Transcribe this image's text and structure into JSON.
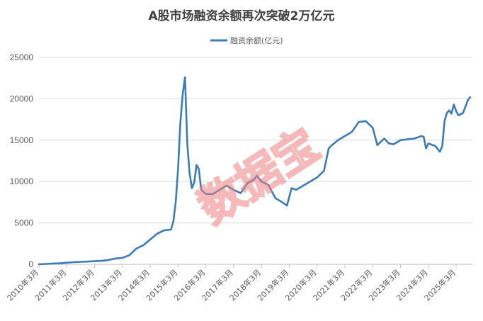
{
  "chart_data": {
    "type": "line",
    "title": "A股市场融资余额再次突破2万亿元",
    "xlabel": "",
    "ylabel": "",
    "ylim": [
      0,
      25000
    ],
    "yticks": [
      0,
      5000,
      10000,
      15000,
      20000,
      25000
    ],
    "xlim": [
      "2010-03",
      "2025-10"
    ],
    "x_tick_labels": [
      "2010年3月",
      "2011年3月",
      "2012年3月",
      "2013年3月",
      "2014年3月",
      "2015年3月",
      "2016年3月",
      "2017年3月",
      "2018年3月",
      "2019年3月",
      "2020年3月",
      "2021年3月",
      "2022年3月",
      "2023年3月",
      "2024年3月",
      "2025年3月"
    ],
    "grid": "horizontal",
    "legend": "top-center",
    "series": [
      {
        "name": "融资余额(亿元)",
        "color": "#3d7bb8",
        "points": [
          [
            "2010-03",
            10
          ],
          [
            "2010-06",
            40
          ],
          [
            "2010-09",
            90
          ],
          [
            "2010-12",
            120
          ],
          [
            "2011-03",
            200
          ],
          [
            "2011-06",
            260
          ],
          [
            "2011-09",
            300
          ],
          [
            "2011-12",
            330
          ],
          [
            "2012-03",
            380
          ],
          [
            "2012-06",
            420
          ],
          [
            "2012-09",
            520
          ],
          [
            "2012-12",
            700
          ],
          [
            "2013-03",
            780
          ],
          [
            "2013-06",
            1100
          ],
          [
            "2013-09",
            1900
          ],
          [
            "2013-12",
            2300
          ],
          [
            "2014-03",
            3000
          ],
          [
            "2014-06",
            3700
          ],
          [
            "2014-09",
            4100
          ],
          [
            "2014-12",
            4200
          ],
          [
            "2015-01",
            5200
          ],
          [
            "2015-02",
            7500
          ],
          [
            "2015-03",
            11500
          ],
          [
            "2015-04",
            17000
          ],
          [
            "2015-05",
            20500
          ],
          [
            "2015-06",
            22600
          ],
          [
            "2015-07",
            14500
          ],
          [
            "2015-08",
            11000
          ],
          [
            "2015-09",
            9200
          ],
          [
            "2015-10",
            9900
          ],
          [
            "2015-11",
            12000
          ],
          [
            "2015-12",
            11500
          ],
          [
            "2016-01",
            9000
          ],
          [
            "2016-03",
            8500
          ],
          [
            "2016-06",
            8500
          ],
          [
            "2016-09",
            9000
          ],
          [
            "2016-12",
            9500
          ],
          [
            "2017-03",
            9000
          ],
          [
            "2017-06",
            8600
          ],
          [
            "2017-09",
            9800
          ],
          [
            "2017-12",
            10300
          ],
          [
            "2018-01",
            10700
          ],
          [
            "2018-03",
            10000
          ],
          [
            "2018-06",
            9600
          ],
          [
            "2018-09",
            8000
          ],
          [
            "2018-12",
            7500
          ],
          [
            "2019-02",
            7100
          ],
          [
            "2019-04",
            9200
          ],
          [
            "2019-06",
            9000
          ],
          [
            "2019-09",
            9500
          ],
          [
            "2019-12",
            10000
          ],
          [
            "2020-03",
            10500
          ],
          [
            "2020-06",
            11300
          ],
          [
            "2020-08",
            14000
          ],
          [
            "2020-09",
            14300
          ],
          [
            "2020-12",
            15000
          ],
          [
            "2021-03",
            15500
          ],
          [
            "2021-06",
            16000
          ],
          [
            "2021-09",
            17200
          ],
          [
            "2021-12",
            17300
          ],
          [
            "2022-03",
            16500
          ],
          [
            "2022-05",
            14400
          ],
          [
            "2022-08",
            15200
          ],
          [
            "2022-10",
            14600
          ],
          [
            "2022-12",
            14500
          ],
          [
            "2023-03",
            15000
          ],
          [
            "2023-06",
            15100
          ],
          [
            "2023-09",
            15200
          ],
          [
            "2023-12",
            15500
          ],
          [
            "2024-01",
            15400
          ],
          [
            "2024-02",
            14000
          ],
          [
            "2024-03",
            14600
          ],
          [
            "2024-06",
            14300
          ],
          [
            "2024-08",
            13600
          ],
          [
            "2024-09",
            14300
          ],
          [
            "2024-10",
            17300
          ],
          [
            "2024-11",
            18300
          ],
          [
            "2024-12",
            18600
          ],
          [
            "2025-01",
            18200
          ],
          [
            "2025-02",
            19300
          ],
          [
            "2025-03",
            18500
          ],
          [
            "2025-04",
            18000
          ],
          [
            "2025-06",
            18300
          ],
          [
            "2025-08",
            19800
          ],
          [
            "2025-09",
            20200
          ]
        ]
      }
    ],
    "watermark": {
      "text": "数据宝",
      "color": "#f08080"
    }
  }
}
